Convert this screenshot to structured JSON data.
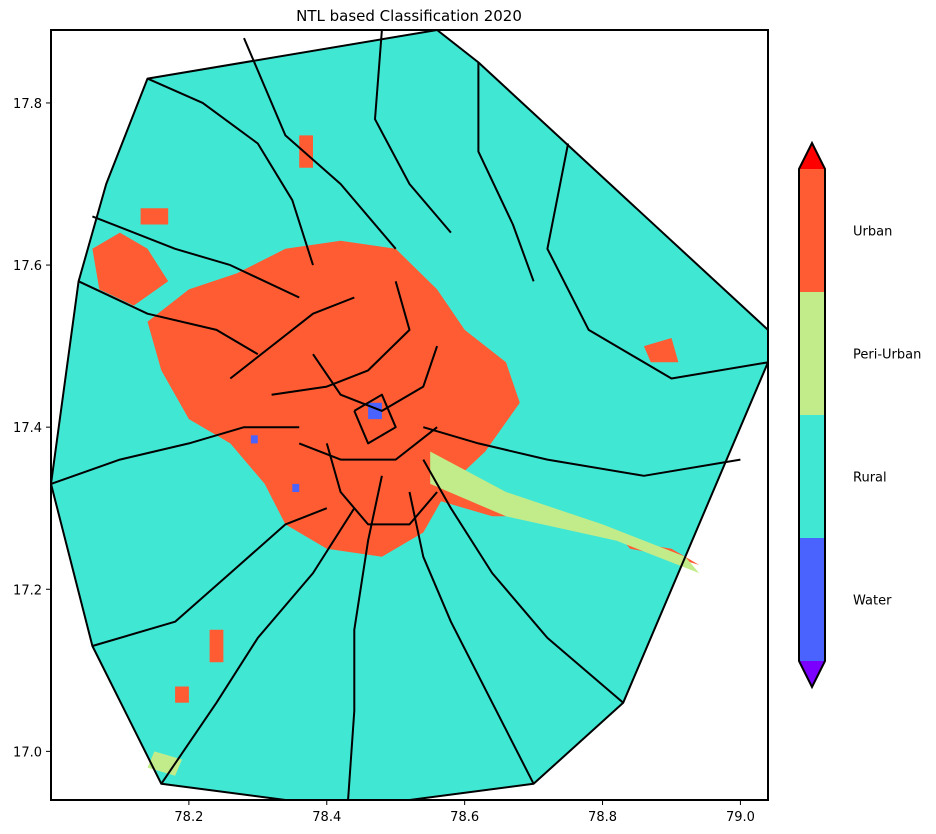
{
  "chart_data": {
    "type": "heatmap",
    "title": "NTL based Classification 2020",
    "xlabel": "",
    "ylabel": "",
    "xlim": [
      78.0,
      79.04
    ],
    "ylim": [
      16.94,
      17.89
    ],
    "x_ticks": [
      78.2,
      78.4,
      78.6,
      78.8,
      79.0
    ],
    "x_tick_labels": [
      "78.2",
      "78.4",
      "78.6",
      "78.8",
      "79.0"
    ],
    "y_ticks": [
      17.0,
      17.2,
      17.4,
      17.6,
      17.8
    ],
    "y_tick_labels": [
      "17.0",
      "17.2",
      "17.4",
      "17.6",
      "17.8"
    ],
    "colorbar": {
      "extend": "both",
      "under_color": "#7b00ff",
      "over_color": "#ff0000",
      "classes": [
        {
          "label": "Water",
          "color": "#4a63ff"
        },
        {
          "label": "Rural",
          "color": "#40e8d4"
        },
        {
          "label": "Peri-Urban",
          "color": "#c2ec8a"
        },
        {
          "label": "Urban",
          "color": "#ff5c33"
        }
      ]
    },
    "background_class": "Rural",
    "footprint_lonlat": [
      [
        78.14,
        17.83
      ],
      [
        78.56,
        17.89
      ],
      [
        78.62,
        17.85
      ],
      [
        79.04,
        17.52
      ],
      [
        79.04,
        17.48
      ],
      [
        78.83,
        17.06
      ],
      [
        78.7,
        16.96
      ],
      [
        78.43,
        16.93
      ],
      [
        78.16,
        16.96
      ],
      [
        78.06,
        17.13
      ],
      [
        78.0,
        17.33
      ],
      [
        78.04,
        17.58
      ],
      [
        78.08,
        17.7
      ]
    ],
    "regions": [
      {
        "class": "Urban",
        "polygon": [
          [
            78.27,
            17.59
          ],
          [
            78.34,
            17.62
          ],
          [
            78.42,
            17.63
          ],
          [
            78.5,
            17.62
          ],
          [
            78.56,
            17.57
          ],
          [
            78.6,
            17.52
          ],
          [
            78.66,
            17.48
          ],
          [
            78.68,
            17.43
          ],
          [
            78.63,
            17.37
          ],
          [
            78.58,
            17.33
          ],
          [
            78.54,
            17.27
          ],
          [
            78.48,
            17.24
          ],
          [
            78.4,
            17.25
          ],
          [
            78.34,
            17.28
          ],
          [
            78.31,
            17.33
          ],
          [
            78.26,
            17.38
          ],
          [
            78.2,
            17.41
          ],
          [
            78.16,
            17.47
          ],
          [
            78.14,
            17.53
          ],
          [
            78.2,
            17.57
          ]
        ]
      },
      {
        "class": "Urban",
        "polygon": [
          [
            78.06,
            17.62
          ],
          [
            78.1,
            17.64
          ],
          [
            78.14,
            17.62
          ],
          [
            78.17,
            17.58
          ],
          [
            78.12,
            17.55
          ],
          [
            78.07,
            17.57
          ]
        ]
      },
      {
        "class": "Urban",
        "polygon": [
          [
            78.55,
            17.34
          ],
          [
            78.62,
            17.33
          ],
          [
            78.68,
            17.31
          ],
          [
            78.7,
            17.29
          ],
          [
            78.64,
            17.29
          ],
          [
            78.56,
            17.31
          ]
        ]
      },
      {
        "class": "Urban",
        "polygon": [
          [
            78.83,
            17.26
          ],
          [
            78.9,
            17.25
          ],
          [
            78.94,
            17.23
          ],
          [
            78.9,
            17.24
          ],
          [
            78.84,
            17.25
          ]
        ]
      },
      {
        "class": "Urban",
        "polygon": [
          [
            78.86,
            17.5
          ],
          [
            78.9,
            17.51
          ],
          [
            78.91,
            17.48
          ],
          [
            78.87,
            17.48
          ]
        ]
      },
      {
        "class": "Urban",
        "polygon": [
          [
            78.23,
            17.15
          ],
          [
            78.25,
            17.15
          ],
          [
            78.25,
            17.11
          ],
          [
            78.23,
            17.11
          ]
        ]
      },
      {
        "class": "Urban",
        "polygon": [
          [
            78.18,
            17.08
          ],
          [
            78.2,
            17.08
          ],
          [
            78.2,
            17.06
          ],
          [
            78.18,
            17.06
          ]
        ]
      },
      {
        "class": "Urban",
        "polygon": [
          [
            78.36,
            17.76
          ],
          [
            78.38,
            17.76
          ],
          [
            78.38,
            17.72
          ],
          [
            78.36,
            17.72
          ]
        ]
      },
      {
        "class": "Urban",
        "polygon": [
          [
            78.13,
            17.67
          ],
          [
            78.17,
            17.67
          ],
          [
            78.17,
            17.65
          ],
          [
            78.13,
            17.65
          ]
        ]
      },
      {
        "class": "Peri-Urban",
        "polygon": [
          [
            78.15,
            17.0
          ],
          [
            78.19,
            16.99
          ],
          [
            78.18,
            16.97
          ],
          [
            78.14,
            16.98
          ]
        ]
      },
      {
        "class": "Peri-Urban",
        "polygon": [
          [
            78.55,
            17.37
          ],
          [
            78.66,
            17.32
          ],
          [
            78.8,
            17.28
          ],
          [
            78.92,
            17.24
          ],
          [
            78.94,
            17.22
          ],
          [
            78.82,
            17.26
          ],
          [
            78.66,
            17.29
          ],
          [
            78.55,
            17.33
          ]
        ]
      },
      {
        "class": "Water",
        "polygon": [
          [
            78.46,
            17.43
          ],
          [
            78.48,
            17.43
          ],
          [
            78.48,
            17.41
          ],
          [
            78.46,
            17.41
          ]
        ]
      },
      {
        "class": "Water",
        "polygon": [
          [
            78.35,
            17.33
          ],
          [
            78.36,
            17.33
          ],
          [
            78.36,
            17.32
          ],
          [
            78.35,
            17.32
          ]
        ]
      },
      {
        "class": "Water",
        "polygon": [
          [
            78.29,
            17.39
          ],
          [
            78.3,
            17.39
          ],
          [
            78.3,
            17.38
          ],
          [
            78.29,
            17.38
          ]
        ]
      }
    ],
    "boundaries": [
      [
        [
          78.14,
          17.83
        ],
        [
          78.22,
          17.8
        ],
        [
          78.3,
          17.75
        ],
        [
          78.35,
          17.68
        ],
        [
          78.38,
          17.6
        ]
      ],
      [
        [
          78.28,
          17.88
        ],
        [
          78.34,
          17.76
        ],
        [
          78.42,
          17.7
        ],
        [
          78.5,
          17.62
        ]
      ],
      [
        [
          78.48,
          17.89
        ],
        [
          78.47,
          17.78
        ],
        [
          78.52,
          17.7
        ],
        [
          78.58,
          17.64
        ]
      ],
      [
        [
          78.62,
          17.85
        ],
        [
          78.62,
          17.74
        ],
        [
          78.67,
          17.65
        ],
        [
          78.7,
          17.58
        ]
      ],
      [
        [
          78.75,
          17.75
        ],
        [
          78.72,
          17.62
        ],
        [
          78.78,
          17.52
        ],
        [
          78.9,
          17.46
        ],
        [
          79.04,
          17.48
        ]
      ],
      [
        [
          78.04,
          17.58
        ],
        [
          78.14,
          17.54
        ],
        [
          78.24,
          17.52
        ],
        [
          78.3,
          17.49
        ]
      ],
      [
        [
          78.06,
          17.66
        ],
        [
          78.18,
          17.62
        ],
        [
          78.26,
          17.6
        ],
        [
          78.36,
          17.56
        ]
      ],
      [
        [
          78.0,
          17.33
        ],
        [
          78.1,
          17.36
        ],
        [
          78.2,
          17.38
        ],
        [
          78.28,
          17.4
        ],
        [
          78.36,
          17.4
        ]
      ],
      [
        [
          78.06,
          17.13
        ],
        [
          78.18,
          17.16
        ],
        [
          78.26,
          17.22
        ],
        [
          78.34,
          17.28
        ],
        [
          78.4,
          17.3
        ]
      ],
      [
        [
          78.16,
          16.96
        ],
        [
          78.24,
          17.06
        ],
        [
          78.3,
          17.14
        ],
        [
          78.38,
          17.22
        ],
        [
          78.44,
          17.3
        ]
      ],
      [
        [
          78.43,
          16.93
        ],
        [
          78.44,
          17.05
        ],
        [
          78.44,
          17.15
        ],
        [
          78.46,
          17.26
        ],
        [
          78.48,
          17.34
        ]
      ],
      [
        [
          78.7,
          16.96
        ],
        [
          78.64,
          17.06
        ],
        [
          78.58,
          17.16
        ],
        [
          78.54,
          17.24
        ],
        [
          78.52,
          17.32
        ]
      ],
      [
        [
          78.83,
          17.06
        ],
        [
          78.72,
          17.14
        ],
        [
          78.64,
          17.22
        ],
        [
          78.58,
          17.3
        ],
        [
          78.54,
          17.36
        ]
      ],
      [
        [
          79.0,
          17.36
        ],
        [
          78.86,
          17.34
        ],
        [
          78.72,
          17.36
        ],
        [
          78.62,
          17.38
        ],
        [
          78.54,
          17.4
        ]
      ],
      [
        [
          78.38,
          17.49
        ],
        [
          78.42,
          17.44
        ],
        [
          78.48,
          17.42
        ],
        [
          78.54,
          17.45
        ],
        [
          78.56,
          17.5
        ]
      ],
      [
        [
          78.36,
          17.38
        ],
        [
          78.42,
          17.36
        ],
        [
          78.5,
          17.36
        ],
        [
          78.56,
          17.4
        ]
      ],
      [
        [
          78.32,
          17.44
        ],
        [
          78.4,
          17.45
        ],
        [
          78.46,
          17.47
        ],
        [
          78.52,
          17.52
        ],
        [
          78.5,
          17.58
        ]
      ],
      [
        [
          78.26,
          17.46
        ],
        [
          78.32,
          17.5
        ],
        [
          78.38,
          17.54
        ],
        [
          78.44,
          17.56
        ]
      ],
      [
        [
          78.4,
          17.38
        ],
        [
          78.42,
          17.32
        ],
        [
          78.46,
          17.28
        ],
        [
          78.52,
          17.28
        ],
        [
          78.56,
          17.32
        ]
      ],
      [
        [
          78.44,
          17.42
        ],
        [
          78.46,
          17.38
        ],
        [
          78.5,
          17.4
        ],
        [
          78.48,
          17.44
        ],
        [
          78.44,
          17.42
        ]
      ]
    ]
  }
}
